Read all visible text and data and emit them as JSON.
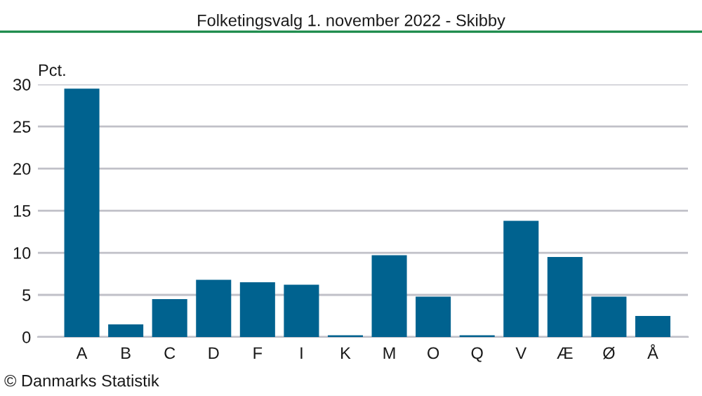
{
  "chart_data": {
    "type": "bar",
    "title": "Folketingsvalg 1. november 2022 - Skibby",
    "ylabel": "Pct.",
    "categories": [
      "A",
      "B",
      "C",
      "D",
      "F",
      "I",
      "K",
      "M",
      "O",
      "Q",
      "V",
      "Æ",
      "Ø",
      "Å"
    ],
    "values": [
      29.5,
      1.5,
      4.5,
      6.8,
      6.5,
      6.2,
      0.2,
      9.7,
      4.8,
      0.2,
      13.8,
      9.5,
      4.8,
      2.5
    ],
    "color": "#00628f",
    "ylim": [
      0,
      30
    ],
    "yticks": [
      0,
      5,
      10,
      15,
      20,
      25,
      30
    ],
    "grid": "y",
    "annotations": [
      "© Danmarks Statistik"
    ]
  }
}
